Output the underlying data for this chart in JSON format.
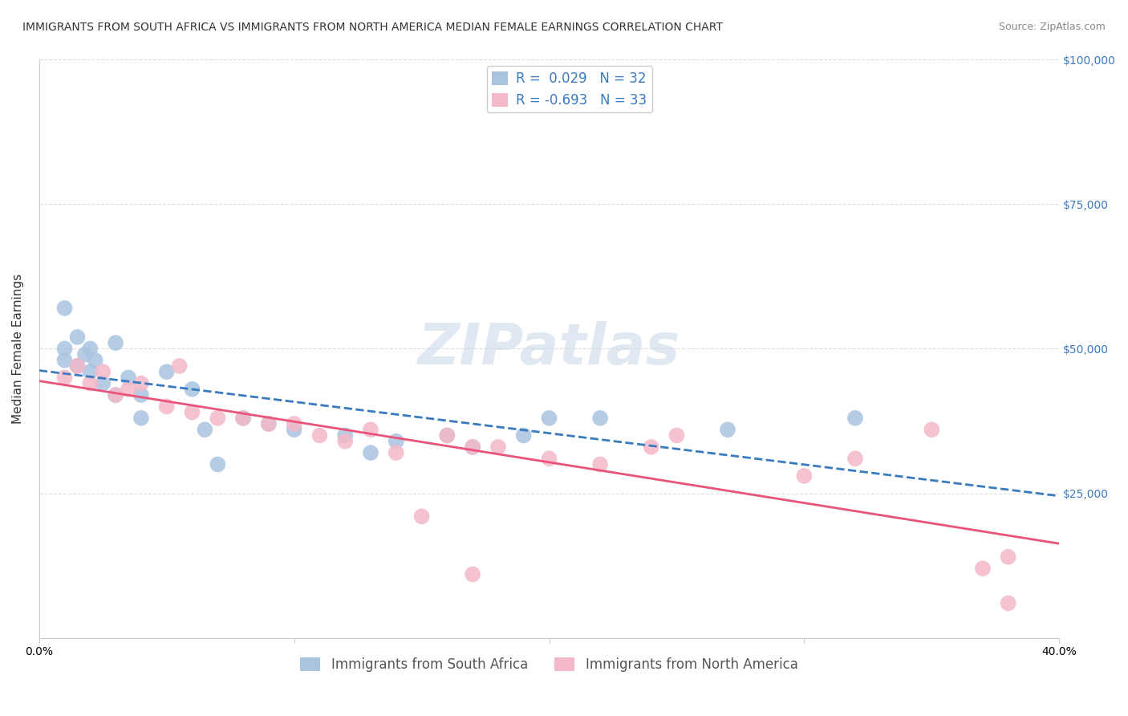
{
  "title": "IMMIGRANTS FROM SOUTH AFRICA VS IMMIGRANTS FROM NORTH AMERICA MEDIAN FEMALE EARNINGS CORRELATION CHART",
  "source": "Source: ZipAtlas.com",
  "ylabel": "Median Female Earnings",
  "xlim": [
    0.0,
    0.4
  ],
  "ylim": [
    0,
    100000
  ],
  "yticks": [
    0,
    25000,
    50000,
    75000,
    100000
  ],
  "ytick_labels": [
    "",
    "$25,000",
    "$50,000",
    "$75,000",
    "$100,000"
  ],
  "xticks": [
    0.0,
    0.1,
    0.2,
    0.3,
    0.4
  ],
  "xtick_labels": [
    "0.0%",
    "",
    "",
    "",
    "40.0%"
  ],
  "series1_name": "Immigrants from South Africa",
  "series1_color": "#aac4e0",
  "series1_line_color": "#3a7abf",
  "series1_R": 0.029,
  "series1_N": 32,
  "series2_name": "Immigrants from North America",
  "series2_color": "#f4b8c8",
  "series2_line_color": "#e8547a",
  "series2_R": -0.693,
  "series2_N": 33,
  "watermark": "ZIPatlas",
  "background_color": "#ffffff",
  "grid_color": "#dddddd",
  "legend_text_color": "#3a7abf",
  "blue_scatter_x": [
    0.01,
    0.01,
    0.015,
    0.015,
    0.018,
    0.02,
    0.02,
    0.022,
    0.025,
    0.03,
    0.03,
    0.035,
    0.04,
    0.04,
    0.05,
    0.06,
    0.065,
    0.07,
    0.08,
    0.09,
    0.1,
    0.12,
    0.13,
    0.14,
    0.16,
    0.17,
    0.19,
    0.2,
    0.22,
    0.27,
    0.32,
    0.01
  ],
  "blue_scatter_y": [
    48000,
    50000,
    47000,
    52000,
    49000,
    50000,
    46000,
    48000,
    44000,
    42000,
    51000,
    45000,
    42000,
    38000,
    46000,
    43000,
    36000,
    30000,
    38000,
    37000,
    36000,
    35000,
    32000,
    34000,
    35000,
    33000,
    35000,
    38000,
    38000,
    36000,
    38000,
    57000
  ],
  "pink_scatter_x": [
    0.01,
    0.015,
    0.02,
    0.025,
    0.03,
    0.035,
    0.04,
    0.05,
    0.055,
    0.06,
    0.07,
    0.08,
    0.09,
    0.1,
    0.11,
    0.12,
    0.13,
    0.14,
    0.15,
    0.16,
    0.17,
    0.18,
    0.2,
    0.22,
    0.24,
    0.25,
    0.3,
    0.32,
    0.35,
    0.37,
    0.38,
    0.17,
    0.38
  ],
  "pink_scatter_y": [
    45000,
    47000,
    44000,
    46000,
    42000,
    43000,
    44000,
    40000,
    47000,
    39000,
    38000,
    38000,
    37000,
    37000,
    35000,
    34000,
    36000,
    32000,
    21000,
    35000,
    33000,
    33000,
    31000,
    30000,
    33000,
    35000,
    28000,
    31000,
    36000,
    12000,
    14000,
    11000,
    6000
  ],
  "title_fontsize": 10,
  "axis_label_fontsize": 11,
  "tick_fontsize": 10,
  "legend_fontsize": 12,
  "watermark_fontsize": 52,
  "source_fontsize": 9
}
